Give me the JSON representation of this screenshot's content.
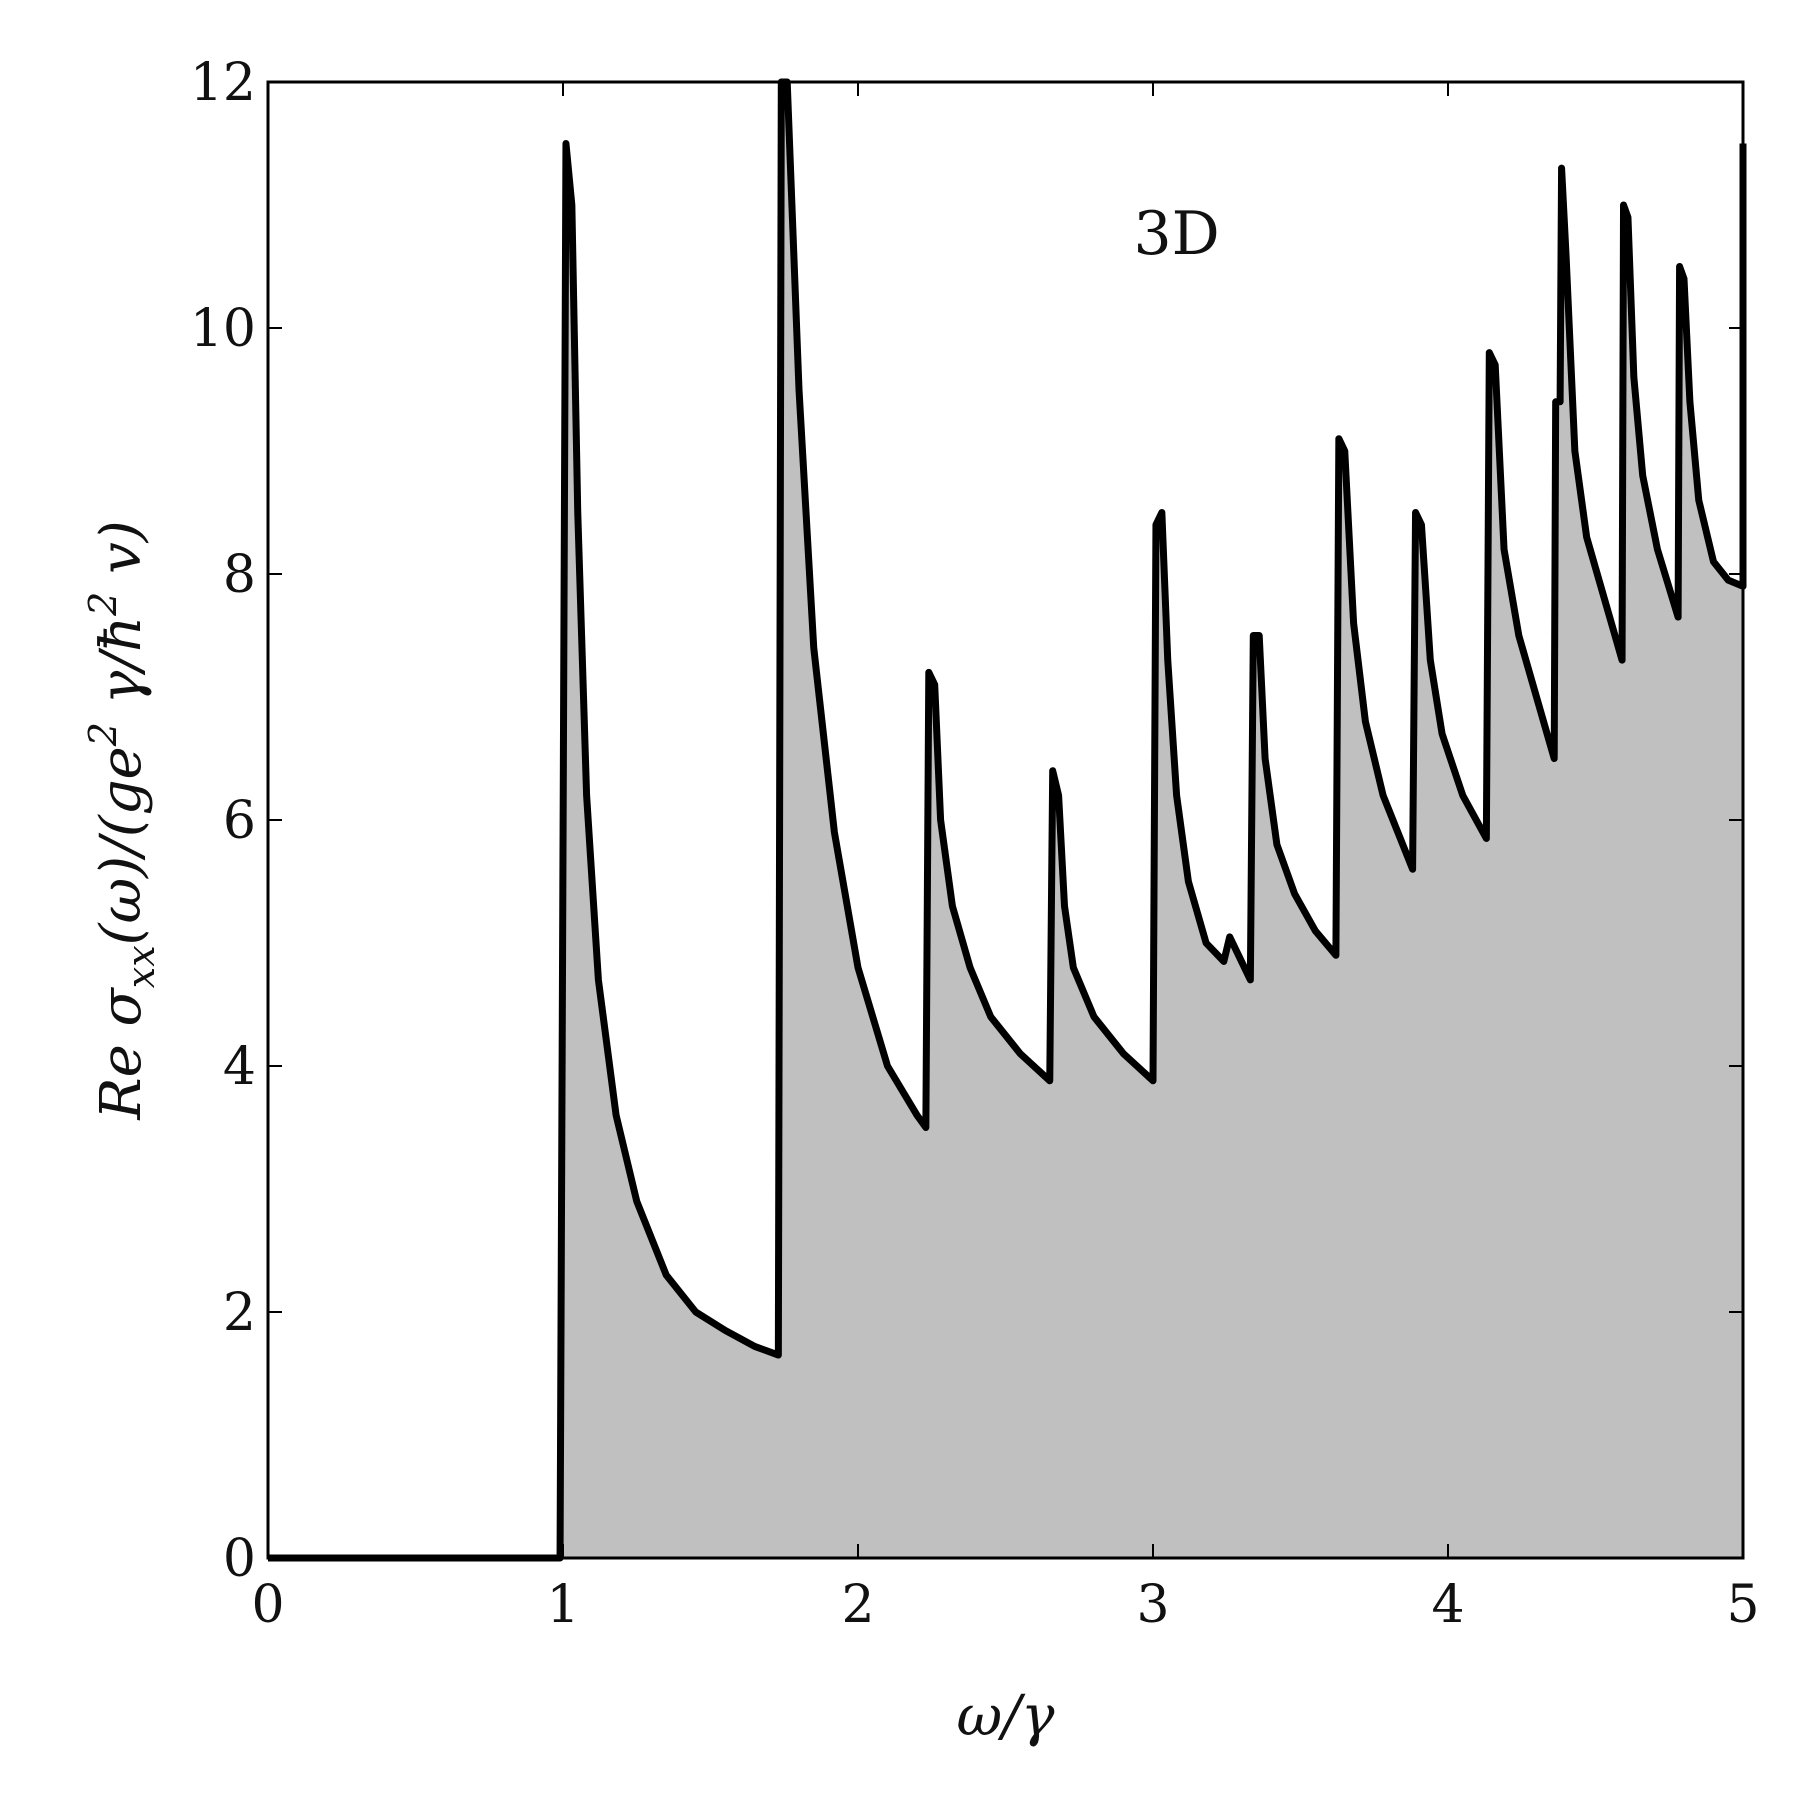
{
  "chart_data": {
    "type": "area",
    "xlabel": "ω/γ",
    "ylabel": "Re σ_xx(ω)/(ge² γ/ħ² v)",
    "ylabel_parts": {
      "prefix": "Re σ",
      "sub": "xx",
      "mid": "(ω)/(ge",
      "sup1": "2",
      "mid2": " γ/ħ",
      "sup2": "2",
      "suffix": " v)"
    },
    "annotation": "3D",
    "xlim": [
      0,
      5
    ],
    "ylim": [
      0,
      12
    ],
    "xticks": [
      0,
      1,
      2,
      3,
      4,
      5
    ],
    "yticks": [
      0,
      2,
      4,
      6,
      8,
      10,
      12
    ],
    "xtick_labels": [
      "0",
      "1",
      "2",
      "3",
      "4",
      "5"
    ],
    "ytick_labels": [
      "0",
      "2",
      "4",
      "6",
      "8",
      "10",
      "12"
    ],
    "line_color": "#000000",
    "fill_color": "#c0c0c0",
    "filled_region": "under curve for ω/γ ≥ 1.73",
    "series": [
      {
        "segments": [
          {
            "x": [
              0,
              0.99
            ],
            "y": [
              0,
              0
            ]
          },
          {
            "x": [
              0.99,
              1.01,
              1.03,
              1.05,
              1.08,
              1.12,
              1.18,
              1.25,
              1.35,
              1.45,
              1.55,
              1.65,
              1.73
            ],
            "y": [
              0,
              11.5,
              11.0,
              8.5,
              6.2,
              4.7,
              3.6,
              2.9,
              2.3,
              2.0,
              1.85,
              1.72,
              1.65
            ]
          },
          {
            "x": [
              1.73,
              1.74,
              1.76,
              1.8,
              1.85,
              1.92,
              2.0,
              2.1,
              2.2,
              2.23
            ],
            "y": [
              1.65,
              12.0,
              12.0,
              9.5,
              7.4,
              5.9,
              4.8,
              4.0,
              3.6,
              3.5
            ]
          },
          {
            "x": [
              2.23,
              2.24,
              2.26,
              2.28,
              2.32,
              2.38,
              2.45,
              2.55,
              2.65
            ],
            "y": [
              3.5,
              7.2,
              7.1,
              6.0,
              5.3,
              4.8,
              4.4,
              4.1,
              3.88
            ]
          },
          {
            "x": [
              2.65,
              2.66,
              2.68,
              2.7,
              2.73,
              2.8,
              2.9,
              3.0
            ],
            "y": [
              3.88,
              6.4,
              6.2,
              5.3,
              4.8,
              4.4,
              4.1,
              3.88
            ]
          },
          {
            "x": [
              3.0,
              3.01,
              3.03,
              3.05,
              3.08,
              3.12,
              3.18,
              3.24,
              3.26,
              3.3,
              3.33
            ],
            "y": [
              3.88,
              8.4,
              8.5,
              7.3,
              6.2,
              5.5,
              5.0,
              4.85,
              5.05,
              4.85,
              4.7
            ]
          },
          {
            "x": [
              3.33,
              3.34,
              3.36,
              3.38,
              3.42,
              3.48,
              3.55,
              3.62
            ],
            "y": [
              4.7,
              7.5,
              7.5,
              6.5,
              5.8,
              5.4,
              5.1,
              4.9
            ]
          },
          {
            "x": [
              3.62,
              3.63,
              3.65,
              3.68,
              3.72,
              3.78,
              3.88
            ],
            "y": [
              4.9,
              9.1,
              9.0,
              7.6,
              6.8,
              6.2,
              5.6
            ]
          },
          {
            "x": [
              3.88,
              3.89,
              3.91,
              3.94,
              3.98,
              4.05,
              4.13
            ],
            "y": [
              5.6,
              8.5,
              8.4,
              7.3,
              6.7,
              6.2,
              5.85
            ]
          },
          {
            "x": [
              4.13,
              4.14,
              4.16,
              4.19,
              4.24,
              4.3,
              4.36
            ],
            "y": [
              5.85,
              9.8,
              9.7,
              8.2,
              7.5,
              7.0,
              6.5
            ]
          },
          {
            "x": [
              4.36,
              4.365,
              4.38,
              4.385,
              4.4,
              4.43,
              4.47,
              4.53,
              4.59
            ],
            "y": [
              6.5,
              9.4,
              9.4,
              11.3,
              10.6,
              9.0,
              8.3,
              7.8,
              7.3
            ]
          },
          {
            "x": [
              4.59,
              4.595,
              4.61,
              4.63,
              4.66,
              4.71,
              4.78
            ],
            "y": [
              7.3,
              11.0,
              10.9,
              9.6,
              8.8,
              8.2,
              7.65
            ]
          },
          {
            "x": [
              4.78,
              4.785,
              4.8,
              4.82,
              4.85,
              4.9,
              4.95,
              5.0
            ],
            "y": [
              7.65,
              10.5,
              10.4,
              9.4,
              8.6,
              8.1,
              7.95,
              7.9
            ]
          },
          {
            "x": [
              5.0,
              5.0
            ],
            "y": [
              7.9,
              11.5
            ]
          }
        ]
      }
    ]
  }
}
